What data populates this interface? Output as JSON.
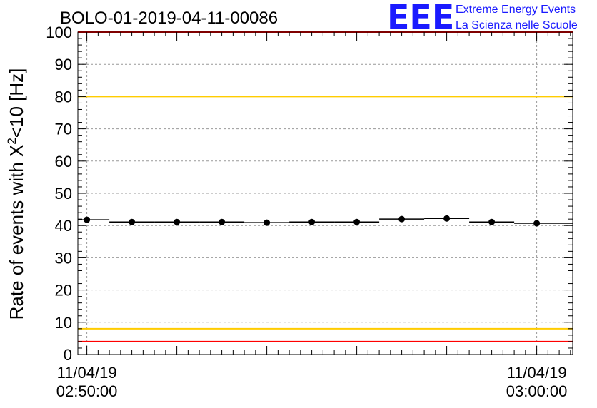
{
  "logo": {
    "letters": "EEE",
    "line1": "Extreme Energy Events",
    "line2": "La Scienza nelle Scuole"
  },
  "chart_data": {
    "type": "line",
    "title": "BOLO-01-2019-04-11-00086",
    "xlabel": "",
    "ylabel": "Rate of events with X",
    "ylabel_sup": "2",
    "ylabel_tail": "<10 [Hz]",
    "ylim": [
      0,
      100
    ],
    "xlim_minutes": [
      -0.2,
      10.8
    ],
    "y_ticks": [
      0,
      10,
      20,
      30,
      40,
      50,
      60,
      70,
      80,
      90,
      100
    ],
    "x_tick_labels": [
      {
        "x": 0,
        "date": "11/04/19",
        "time": "02:50:00"
      },
      {
        "x": 10,
        "date": "11/04/19",
        "time": "03:00:00"
      }
    ],
    "grid": true,
    "reference_lines": [
      {
        "y": 100,
        "color": "#ff0000"
      },
      {
        "y": 80,
        "color": "#ffcc00"
      },
      {
        "y": 8,
        "color": "#ffcc00"
      },
      {
        "y": 4,
        "color": "#ff0000"
      }
    ],
    "series": [
      {
        "color": "#000000",
        "marker": "circle",
        "x_time": [
          "02:50:00",
          "02:51:00",
          "02:52:00",
          "02:53:00",
          "02:54:00",
          "02:55:00",
          "02:56:00",
          "02:57:00",
          "02:58:00",
          "02:59:00",
          "03:00:00"
        ],
        "x_minutes": [
          0,
          1,
          2,
          3,
          4,
          5,
          6,
          7,
          8,
          9,
          10
        ],
        "values": [
          41.8,
          41.1,
          41.1,
          41.1,
          40.9,
          41.1,
          41.1,
          42.0,
          42.2,
          41.1,
          40.7
        ]
      }
    ]
  }
}
